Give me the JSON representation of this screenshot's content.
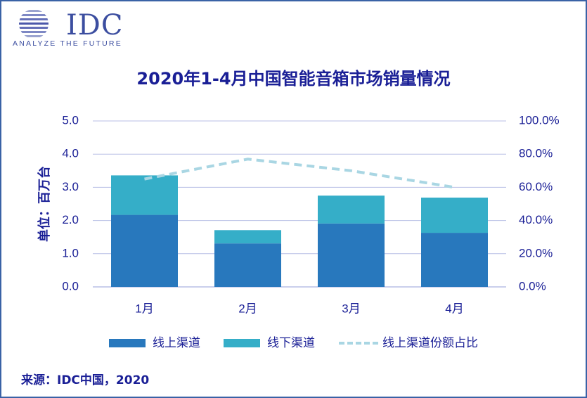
{
  "logo": {
    "name": "IDC",
    "tagline": "ANALYZE THE FUTURE"
  },
  "title": "2020年1-4月中国智能音箱市场销量情况",
  "source": "来源：IDC中国，2020",
  "colors": {
    "online": "#2878bd",
    "offline": "#35aec8",
    "share": "#a9d6e3",
    "text": "#1a1f96",
    "grid": "#b8bfe6"
  },
  "chart_data": {
    "type": "bar",
    "stacked": true,
    "categories": [
      "1月",
      "2月",
      "3月",
      "4月"
    ],
    "series": [
      {
        "name": "线上渠道",
        "values": [
          2.17,
          1.31,
          1.91,
          1.63
        ],
        "axis": "left",
        "kind": "bar"
      },
      {
        "name": "线下渠道",
        "values": [
          1.19,
          0.4,
          0.84,
          1.06
        ],
        "axis": "left",
        "kind": "bar"
      },
      {
        "name": "线上渠道份额占比",
        "values": [
          0.65,
          0.77,
          0.7,
          0.6
        ],
        "axis": "right",
        "kind": "line",
        "style": "dashed"
      }
    ],
    "ylabel": "单位：百万台",
    "ylim": [
      0,
      5
    ],
    "y_ticks": [
      "0.0",
      "1.0",
      "2.0",
      "3.0",
      "4.0",
      "5.0"
    ],
    "y2lim": [
      0,
      1
    ],
    "y2_ticks": [
      "0.0%",
      "20.0%",
      "40.0%",
      "60.0%",
      "80.0%",
      "100.0%"
    ],
    "grid": true,
    "legend_position": "bottom"
  }
}
